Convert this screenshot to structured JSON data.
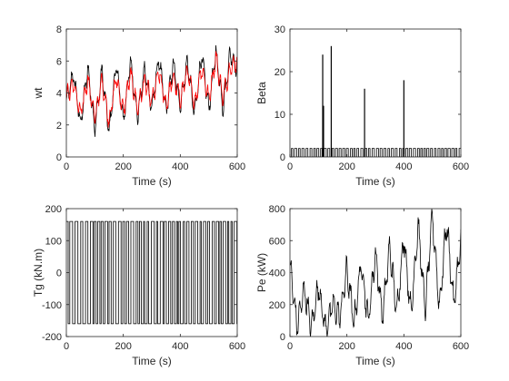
{
  "chart_data": [
    {
      "type": "line",
      "panel": "top-left",
      "xlabel": "Time (s)",
      "ylabel": "wt",
      "xlim": [
        0,
        600
      ],
      "ylim": [
        0,
        8
      ],
      "xticks": [
        0,
        200,
        400,
        600
      ],
      "yticks": [
        0,
        2,
        4,
        6,
        8
      ],
      "grid": false,
      "series": [
        {
          "color": "#000000",
          "description": "oscillating signal, mean rising from ~3.5 to ~4.5, swings roughly 1 to 6.5",
          "x": [
            0,
            25,
            50,
            75,
            100,
            125,
            150,
            175,
            200,
            225,
            250,
            275,
            300,
            325,
            350,
            375,
            400,
            425,
            450,
            475,
            500,
            525,
            550,
            575,
            600
          ],
          "y": [
            3.5,
            5.2,
            2.0,
            5.6,
            1.8,
            5.4,
            1.5,
            5.8,
            2.2,
            6.0,
            2.5,
            5.5,
            3.0,
            6.2,
            2.8,
            5.8,
            3.2,
            6.0,
            2.6,
            6.4,
            3.0,
            6.6,
            3.1,
            6.5,
            5.5
          ]
        },
        {
          "color": "#ff0000",
          "description": "oscillating signal following the black one with smaller amplitude",
          "x": [
            0,
            25,
            50,
            75,
            100,
            125,
            150,
            175,
            200,
            225,
            250,
            275,
            300,
            325,
            350,
            375,
            400,
            425,
            450,
            475,
            500,
            525,
            550,
            575,
            600
          ],
          "y": [
            3.8,
            4.6,
            2.6,
            4.9,
            2.4,
            4.8,
            2.2,
            5.0,
            2.8,
            5.2,
            3.0,
            4.8,
            3.4,
            5.3,
            3.2,
            5.0,
            3.6,
            5.4,
            3.3,
            5.6,
            3.6,
            6.2,
            3.7,
            5.6,
            6.0
          ]
        }
      ]
    },
    {
      "type": "line",
      "panel": "top-right",
      "xlabel": "Time (s)",
      "ylabel": "Beta",
      "xlim": [
        0,
        600
      ],
      "ylim": [
        0,
        30
      ],
      "xticks": [
        0,
        200,
        400,
        600
      ],
      "yticks": [
        0,
        10,
        20,
        30
      ],
      "grid": false,
      "series": [
        {
          "color": "#000000",
          "description": "square wave toggling between 0 and ~2 with isolated spikes",
          "base_level": 2,
          "spikes": [
            {
              "x": 115,
              "y": 24
            },
            {
              "x": 118,
              "y": 12
            },
            {
              "x": 145,
              "y": 26
            },
            {
              "x": 262,
              "y": 16
            },
            {
              "x": 400,
              "y": 18
            }
          ]
        }
      ]
    },
    {
      "type": "line",
      "panel": "bottom-left",
      "xlabel": "Time (s)",
      "ylabel": "Tg (kN.m)",
      "xlim": [
        0,
        600
      ],
      "ylim": [
        -200,
        200
      ],
      "xticks": [
        0,
        200,
        400,
        600
      ],
      "yticks": [
        -200,
        -100,
        0,
        100,
        200
      ],
      "grid": false,
      "series": [
        {
          "color": "#000000",
          "description": "square wave switching between +160 and -160",
          "high": 160,
          "low": -160
        }
      ]
    },
    {
      "type": "line",
      "panel": "bottom-right",
      "xlabel": "Time (s)",
      "ylabel": "Pe (kW)",
      "xlim": [
        0,
        600
      ],
      "ylim": [
        0,
        800
      ],
      "xticks": [
        0,
        200,
        400,
        600
      ],
      "yticks": [
        0,
        200,
        400,
        600,
        800
      ],
      "grid": false,
      "series": [
        {
          "color": "#000000",
          "description": "spiky power signal, peaks growing from ~400 to ~800",
          "x": [
            0,
            25,
            50,
            75,
            100,
            125,
            150,
            175,
            200,
            225,
            250,
            275,
            300,
            325,
            350,
            375,
            400,
            425,
            450,
            475,
            500,
            525,
            550,
            575,
            600
          ],
          "y": [
            450,
            60,
            300,
            50,
            320,
            40,
            200,
            120,
            420,
            80,
            460,
            100,
            520,
            120,
            560,
            150,
            620,
            140,
            700,
            160,
            760,
            180,
            720,
            200,
            600
          ]
        }
      ]
    }
  ]
}
